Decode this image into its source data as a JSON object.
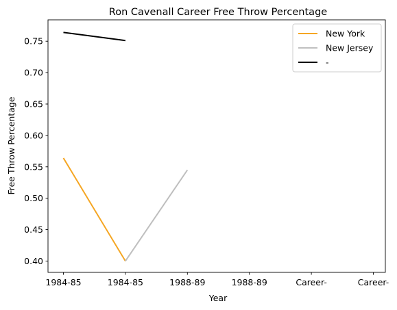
{
  "chart_data": {
    "type": "line",
    "title": "Ron Cavenall Career Free Throw Percentage",
    "xlabel": "Year",
    "ylabel": "Free Throw Percentage",
    "x_tick_labels": [
      "1984-85",
      "1984-85",
      "1988-89",
      "1988-89",
      "Career-",
      "Career-"
    ],
    "ylim": [
      0.382,
      0.784
    ],
    "y_ticks": [
      0.4,
      0.45,
      0.5,
      0.55,
      0.6,
      0.65,
      0.7,
      0.75
    ],
    "y_tick_labels": [
      "0.40",
      "0.45",
      "0.50",
      "0.55",
      "0.60",
      "0.65",
      "0.70",
      "0.75"
    ],
    "grid": false,
    "legend_position": "top-right",
    "series": [
      {
        "name": "New York",
        "color": "#f5a623",
        "points": [
          [
            0,
            0.564
          ],
          [
            1,
            0.4
          ]
        ]
      },
      {
        "name": "New Jersey",
        "color": "#bfbfbf",
        "points": [
          [
            1,
            0.4
          ],
          [
            2,
            0.545
          ]
        ]
      },
      {
        "name": "-",
        "color": "#000000",
        "points": [
          [
            0,
            0.764
          ],
          [
            1,
            0.751
          ]
        ]
      }
    ]
  }
}
